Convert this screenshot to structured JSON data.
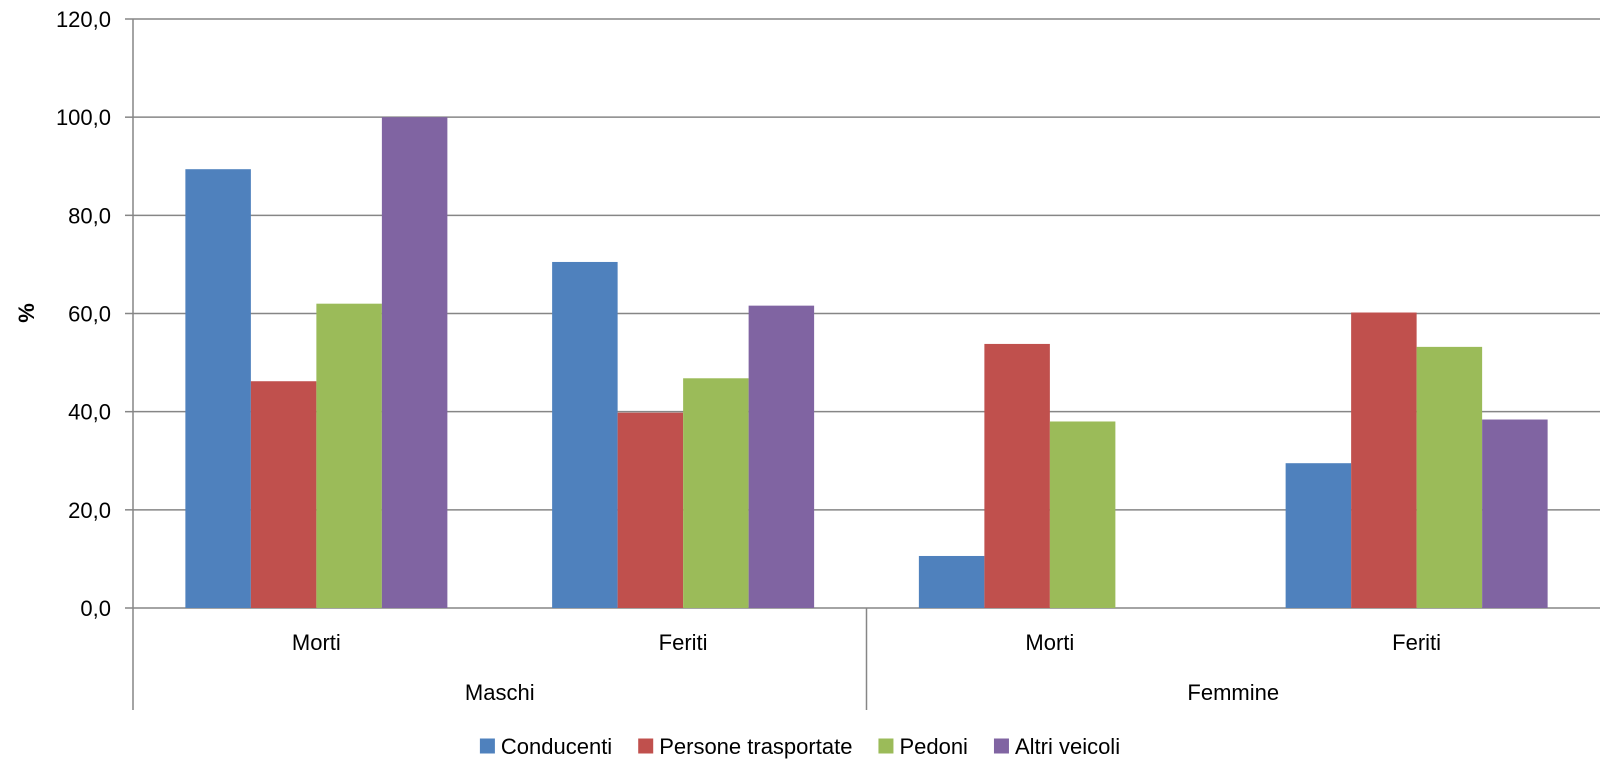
{
  "chart_data": {
    "type": "bar",
    "title": "",
    "xlabel": "",
    "ylabel": "%",
    "ylim": [
      0,
      120
    ],
    "ytick_step": 20,
    "ytick_format": "comma1",
    "grid": true,
    "legend_position": "bottom",
    "groups": [
      {
        "label": "Maschi",
        "categories": [
          "Morti",
          "Feriti"
        ]
      },
      {
        "label": "Femmine",
        "categories": [
          "Morti",
          "Feriti"
        ]
      }
    ],
    "categories": [
      "Morti",
      "Feriti",
      "Morti",
      "Feriti"
    ],
    "series": [
      {
        "name": "Conducenti",
        "color": "#4F81BD",
        "values": [
          89.4,
          70.5,
          10.6,
          29.5
        ]
      },
      {
        "name": "Persone trasportate",
        "color": "#C0504D",
        "values": [
          46.2,
          39.8,
          53.8,
          60.2
        ]
      },
      {
        "name": "Pedoni",
        "color": "#9BBB59",
        "values": [
          62.0,
          46.8,
          38.0,
          53.2
        ]
      },
      {
        "name": "Altri veicoli",
        "color": "#8064A2",
        "values": [
          100.0,
          61.6,
          0.0,
          38.4
        ]
      }
    ]
  }
}
